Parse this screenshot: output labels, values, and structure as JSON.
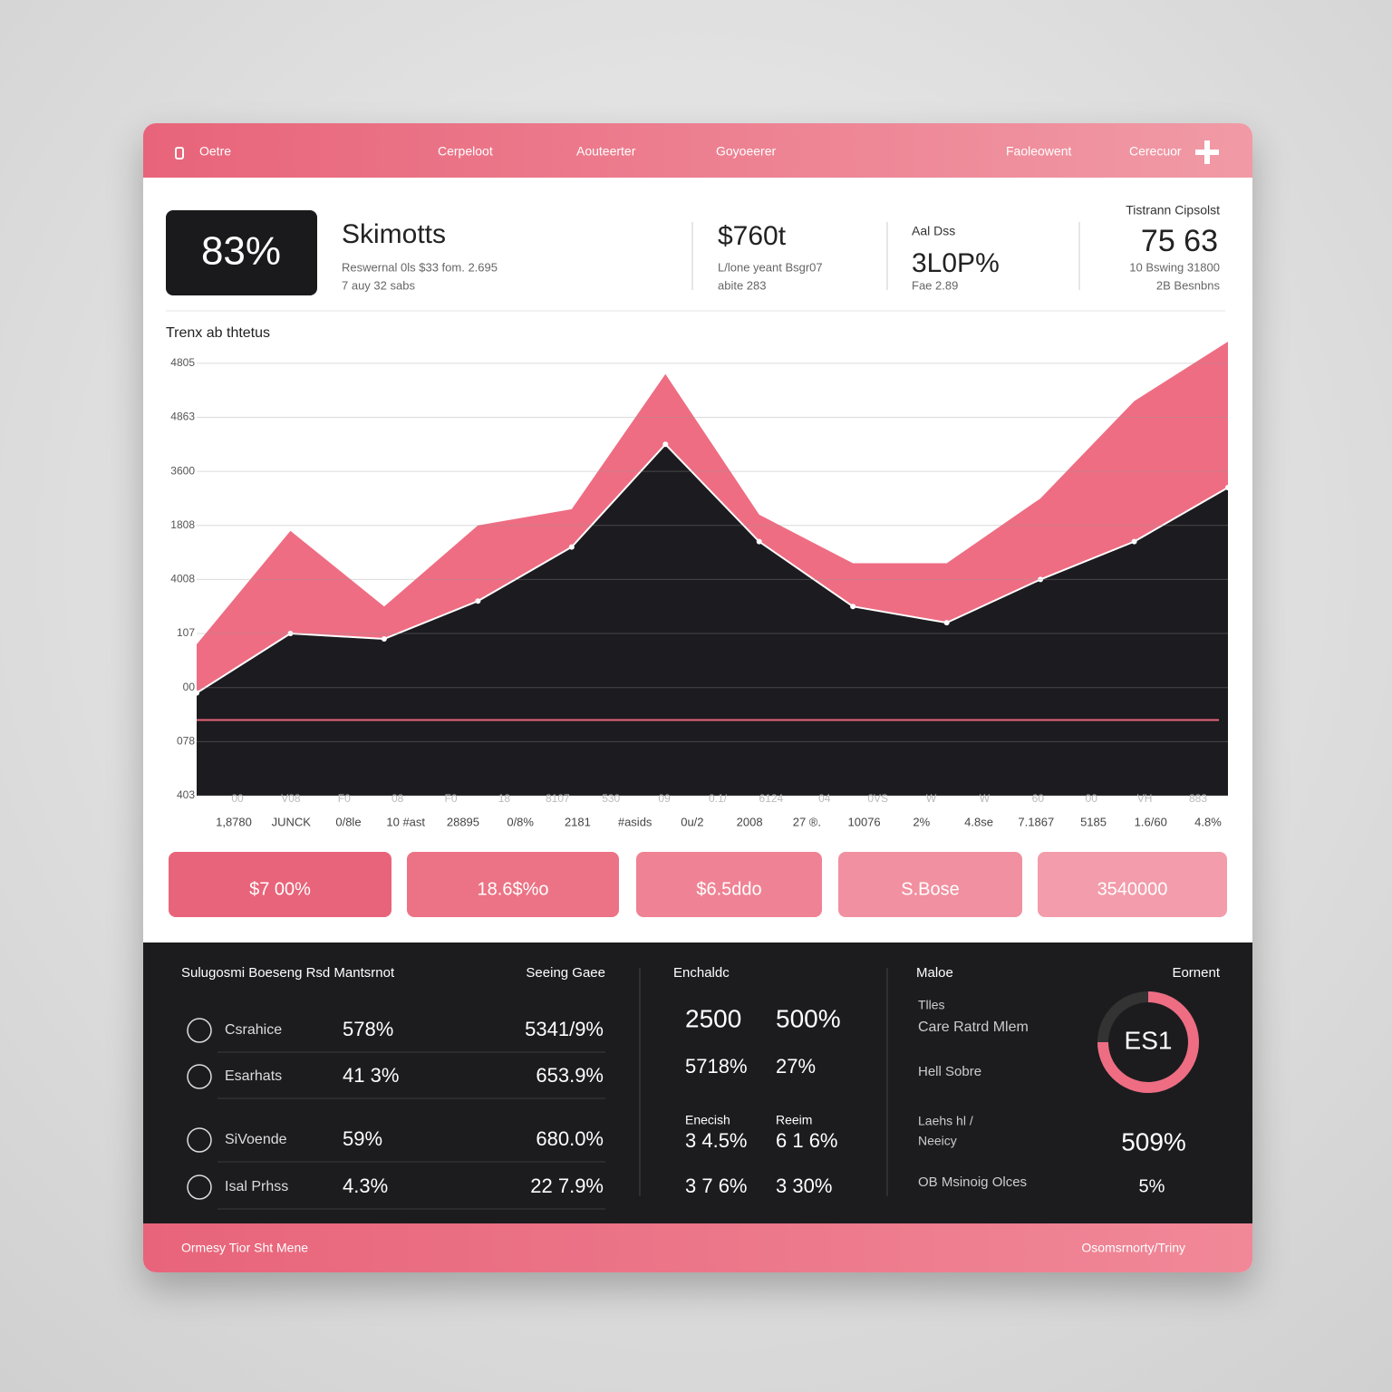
{
  "nav": {
    "items": [
      "Oetre",
      "Cerpeloot",
      "Aouteerter",
      "Goyoeerer",
      "Faoleowent",
      "Cerecuor"
    ]
  },
  "kpis": {
    "badge": "83%",
    "title": "Skimotts",
    "sub": [
      "Reswernal 0ls $33 fom. 2.695",
      "7 auy 32 sabs"
    ],
    "stats": [
      {
        "value": "$760t",
        "lines": [
          "L/lone yeant Bsgr07",
          "abite 283"
        ]
      },
      {
        "label": "Aal Dss",
        "value": "3L0P%",
        "lines": [
          "Fae 2.89"
        ]
      },
      {
        "label": "Tistrann Cipsolst",
        "value": "75 63",
        "lines": [
          "10 Bswing 31800",
          "2B Besnbns"
        ]
      }
    ]
  },
  "chart_data": {
    "type": "area",
    "title": "Trenx ab thtetus",
    "ylim": [
      0,
      8.5
    ],
    "yticks": [
      {
        "value": 0,
        "label": "403"
      },
      {
        "value": 1,
        "label": "078"
      },
      {
        "value": 2,
        "label": "00"
      },
      {
        "value": 3,
        "label": "107"
      },
      {
        "value": 4,
        "label": "4008"
      },
      {
        "value": 5,
        "label": "1808"
      },
      {
        "value": 6,
        "label": "3600"
      },
      {
        "value": 7,
        "label": "4863"
      },
      {
        "value": 8,
        "label": "4805"
      }
    ],
    "grid": true,
    "reference_line": 1.4,
    "reference_color": "#e8647a",
    "series": [
      {
        "color": "#ee6d83",
        "values": [
          2.8,
          4.9,
          3.5,
          5.0,
          5.3,
          7.8,
          5.2,
          4.3,
          4.3,
          5.5,
          7.3,
          8.4
        ]
      },
      {
        "color": "#1c1b1f",
        "values": [
          1.9,
          3.0,
          2.9,
          3.6,
          4.6,
          6.5,
          4.7,
          3.5,
          3.2,
          4.0,
          4.7,
          5.7
        ]
      }
    ],
    "x_labels_top": [
      "00",
      "V08",
      "F0",
      "08",
      "F0",
      "18",
      "8107",
      "530",
      "09",
      "0.1/",
      "6124",
      "04",
      "0VS",
      "W",
      "W",
      "60",
      "00",
      "VH",
      "883"
    ],
    "x_labels_bottom": [
      "1,8780",
      "JUNCK",
      "0/8le",
      "10 #ast",
      "28895",
      "0/8%",
      "2181",
      "#asids",
      "0u/2",
      "2008",
      "27 ®.",
      "10076",
      "2%",
      "4.8se",
      "7.1867",
      "5185",
      "1.6/60",
      "4.8%"
    ]
  },
  "buttons": [
    "$7 00%",
    "18.6$%o",
    "$6.5ddo",
    "S.Bose",
    "3540000"
  ],
  "panel": {
    "left": {
      "heading": "Sulugosmi Boeseng Rsd Mantsrnot",
      "column": "Seeing Gaee",
      "rows": [
        [
          "Csrahice",
          "578%",
          "5341/9%"
        ],
        [
          "Esarhats",
          "41 3%",
          "653.9%"
        ],
        [
          "SiVoende",
          "59%",
          "680.0%"
        ],
        [
          "Isal Prhss",
          "4.3%",
          "22 7.9%"
        ]
      ]
    },
    "middle": {
      "heading": "Enchaldc",
      "cells": [
        [
          "2500",
          "500%"
        ],
        [
          "5718%",
          "27%"
        ],
        [
          "Enecish",
          "Reeim"
        ],
        [
          "3 4.5%",
          "6 1 6%"
        ],
        [
          "3 7 6%",
          "3 30%"
        ]
      ]
    },
    "right": {
      "heading": "Maloe",
      "corner": "Eornent",
      "lines": [
        "Tlles",
        "Care Ratrd Mlem",
        "Hell Sobre",
        "Laehs hl /",
        "Neeicy",
        "OB Msinoig Olces"
      ],
      "big": "509%",
      "small": "5%",
      "ring": "ES1"
    }
  },
  "footer": {
    "left": "Ormesy Tior Sht Mene",
    "right": "Osomsrnorty/Triny"
  }
}
